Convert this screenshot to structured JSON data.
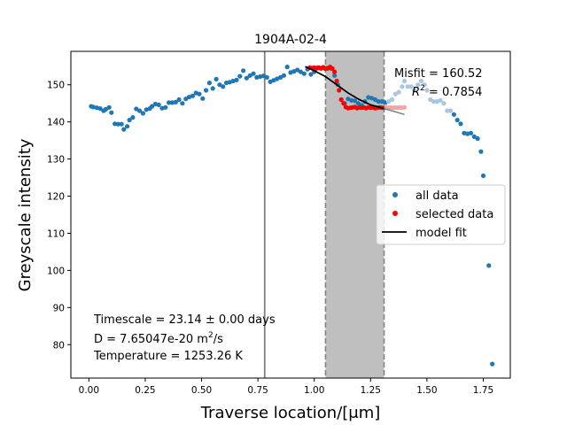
{
  "chart_data": {
    "type": "scatter",
    "title": "1904A-02-4",
    "xlabel": "Traverse location/[μm]",
    "ylabel": "Greyscale intensity",
    "xlim": [
      -0.08,
      1.87
    ],
    "ylim": [
      71,
      159
    ],
    "x_ticks": [
      0.0,
      0.25,
      0.5,
      0.75,
      1.0,
      1.25,
      1.5,
      1.75
    ],
    "x_tick_labels": [
      "0.00",
      "0.25",
      "0.50",
      "0.75",
      "1.00",
      "1.25",
      "1.50",
      "1.75"
    ],
    "y_ticks": [
      80,
      90,
      100,
      110,
      120,
      130,
      140,
      150
    ],
    "y_tick_labels": [
      "80",
      "90",
      "100",
      "110",
      "120",
      "130",
      "140",
      "150"
    ],
    "grid": false,
    "legend_placement": "center-right",
    "legend": [
      {
        "label": "all data",
        "marker": "dot",
        "color": "#1f77b4"
      },
      {
        "label": "selected data",
        "marker": "dot",
        "color": "#ff0000"
      },
      {
        "label": "model fit",
        "marker": "line",
        "color": "#000000"
      }
    ],
    "misfit_text": "Misfit = 160.52",
    "r2_prefix": "R",
    "r2_sup": "2",
    "r2_value": " = 0.7854",
    "annotation_timescale": "Timescale = 23.14 ± 0.00 days",
    "annotation_d_prefix": "D = 7.65047e-20 m",
    "annotation_d_sup": "2",
    "annotation_d_suffix": "/s",
    "annotation_temperature": "Temperature = 1253.26 K",
    "interface_line_x": 0.78,
    "shaded_region": [
      1.05,
      1.31
    ],
    "colors": {
      "all_data": "#1f77b4",
      "all_data_faded": "#a9c6e0",
      "selected": "#ff0000",
      "selected_faded": "#f4a3a3",
      "model_fit": "#000000",
      "model_fit_ext": "#808080",
      "shade": "#bfbfbf",
      "interface": "#808080"
    },
    "series": [
      {
        "name": "all data",
        "points": [
          [
            0.01,
            144.2
          ],
          [
            0.02,
            144.0
          ],
          [
            0.035,
            143.8
          ],
          [
            0.05,
            143.6
          ],
          [
            0.065,
            143.0
          ],
          [
            0.075,
            143.4
          ],
          [
            0.09,
            143.9
          ],
          [
            0.1,
            142.5
          ],
          [
            0.115,
            139.5
          ],
          [
            0.13,
            139.4
          ],
          [
            0.145,
            139.4
          ],
          [
            0.155,
            138.0
          ],
          [
            0.17,
            138.8
          ],
          [
            0.18,
            140.5
          ],
          [
            0.195,
            141.2
          ],
          [
            0.21,
            143.5
          ],
          [
            0.225,
            143.0
          ],
          [
            0.24,
            142.3
          ],
          [
            0.255,
            143.3
          ],
          [
            0.27,
            143.6
          ],
          [
            0.28,
            144.2
          ],
          [
            0.295,
            144.8
          ],
          [
            0.31,
            144.6
          ],
          [
            0.325,
            143.7
          ],
          [
            0.34,
            143.9
          ],
          [
            0.355,
            145.2
          ],
          [
            0.37,
            145.2
          ],
          [
            0.385,
            145.3
          ],
          [
            0.4,
            146.0
          ],
          [
            0.415,
            145.0
          ],
          [
            0.43,
            146.2
          ],
          [
            0.445,
            146.7
          ],
          [
            0.46,
            147.0
          ],
          [
            0.475,
            147.8
          ],
          [
            0.49,
            147.5
          ],
          [
            0.505,
            146.3
          ],
          [
            0.52,
            148.5
          ],
          [
            0.535,
            150.5
          ],
          [
            0.55,
            149.0
          ],
          [
            0.565,
            151.5
          ],
          [
            0.58,
            150.0
          ],
          [
            0.595,
            149.5
          ],
          [
            0.61,
            150.5
          ],
          [
            0.625,
            150.7
          ],
          [
            0.64,
            151.0
          ],
          [
            0.655,
            151.3
          ],
          [
            0.67,
            152.3
          ],
          [
            0.685,
            153.8
          ],
          [
            0.7,
            151.8
          ],
          [
            0.715,
            152.5
          ],
          [
            0.73,
            153.0
          ],
          [
            0.745,
            152.0
          ],
          [
            0.76,
            152.2
          ],
          [
            0.775,
            152.4
          ],
          [
            0.79,
            152.0
          ],
          [
            0.805,
            150.8
          ],
          [
            0.82,
            151.2
          ],
          [
            0.835,
            151.6
          ],
          [
            0.85,
            152.0
          ],
          [
            0.865,
            152.5
          ],
          [
            0.88,
            154.8
          ],
          [
            0.895,
            153.3
          ],
          [
            0.91,
            153.6
          ],
          [
            0.925,
            154.0
          ],
          [
            0.94,
            153.5
          ],
          [
            0.955,
            153.0
          ],
          [
            0.97,
            154.2
          ],
          [
            0.985,
            152.8
          ],
          [
            1.0,
            153.5
          ],
          [
            1.015,
            154.6
          ],
          [
            1.03,
            154.5
          ],
          [
            1.045,
            154.5
          ],
          [
            1.06,
            154.5
          ],
          [
            1.075,
            154.4
          ],
          [
            1.09,
            152.5
          ],
          [
            1.105,
            150.0
          ],
          [
            1.12,
            146.0
          ],
          [
            1.135,
            145.0
          ],
          [
            1.15,
            146.2
          ],
          [
            1.165,
            145.8
          ],
          [
            1.18,
            145.7
          ],
          [
            1.195,
            145.0
          ],
          [
            1.21,
            144.5
          ],
          [
            1.225,
            145.5
          ],
          [
            1.24,
            146.6
          ],
          [
            1.255,
            146.4
          ],
          [
            1.27,
            146.0
          ],
          [
            1.285,
            145.5
          ],
          [
            1.3,
            145.5
          ],
          [
            1.315,
            145.2
          ]
        ]
      },
      {
        "name": "all data (outside window)",
        "points": [
          [
            1.33,
            145.5
          ],
          [
            1.345,
            146.0
          ],
          [
            1.36,
            147.5
          ],
          [
            1.375,
            148.0
          ],
          [
            1.39,
            149.5
          ],
          [
            1.4,
            151.0
          ],
          [
            1.415,
            149.5
          ],
          [
            1.43,
            149.5
          ],
          [
            1.445,
            148.5
          ],
          [
            1.46,
            150.0
          ],
          [
            1.475,
            151.0
          ],
          [
            1.49,
            150.0
          ],
          [
            1.5,
            148.5
          ],
          [
            1.515,
            146.0
          ],
          [
            1.53,
            145.5
          ],
          [
            1.545,
            145.5
          ],
          [
            1.56,
            145.8
          ],
          [
            1.575,
            145.0
          ],
          [
            1.59,
            143.0
          ],
          [
            1.605,
            143.0
          ]
        ]
      },
      {
        "name": "all data (tail)",
        "points": [
          [
            1.62,
            142.0
          ],
          [
            1.635,
            140.5
          ],
          [
            1.65,
            139.5
          ],
          [
            1.665,
            137.0
          ],
          [
            1.68,
            136.8
          ],
          [
            1.695,
            137.0
          ],
          [
            1.71,
            136.0
          ],
          [
            1.725,
            135.5
          ],
          [
            1.74,
            132.0
          ],
          [
            1.75,
            125.5
          ],
          [
            1.775,
            101.3
          ],
          [
            1.79,
            74.8
          ]
        ]
      },
      {
        "name": "selected data",
        "points": [
          [
            0.98,
            154.6
          ],
          [
            0.99,
            154.5
          ],
          [
            1.0,
            154.6
          ],
          [
            1.01,
            154.4
          ],
          [
            1.02,
            154.6
          ],
          [
            1.03,
            154.4
          ],
          [
            1.04,
            154.7
          ],
          [
            1.05,
            154.3
          ],
          [
            1.06,
            154.4
          ],
          [
            1.07,
            154.8
          ],
          [
            1.08,
            154.4
          ],
          [
            1.09,
            153.5
          ],
          [
            1.1,
            151.0
          ],
          [
            1.11,
            148.5
          ],
          [
            1.12,
            146.0
          ],
          [
            1.13,
            145.0
          ],
          [
            1.14,
            144.0
          ],
          [
            1.15,
            143.7
          ],
          [
            1.16,
            143.8
          ],
          [
            1.17,
            143.9
          ],
          [
            1.18,
            144.0
          ],
          [
            1.19,
            143.7
          ],
          [
            1.2,
            143.9
          ],
          [
            1.21,
            143.8
          ],
          [
            1.22,
            143.9
          ],
          [
            1.23,
            143.7
          ],
          [
            1.24,
            143.9
          ],
          [
            1.25,
            143.8
          ],
          [
            1.26,
            143.9
          ],
          [
            1.27,
            143.7
          ],
          [
            1.28,
            143.8
          ],
          [
            1.29,
            143.9
          ],
          [
            1.3,
            143.8
          ],
          [
            1.31,
            143.8
          ]
        ]
      },
      {
        "name": "selected data (outside window)",
        "points": [
          [
            1.32,
            143.9
          ],
          [
            1.33,
            143.8
          ],
          [
            1.34,
            143.9
          ],
          [
            1.35,
            143.8
          ],
          [
            1.36,
            143.9
          ],
          [
            1.37,
            143.8
          ],
          [
            1.38,
            143.9
          ],
          [
            1.39,
            143.8
          ],
          [
            1.4,
            143.9
          ]
        ]
      },
      {
        "name": "model fit",
        "points": [
          [
            0.96,
            154.9
          ],
          [
            1.0,
            153.8
          ],
          [
            1.05,
            152.2
          ],
          [
            1.1,
            150.0
          ],
          [
            1.15,
            147.8
          ],
          [
            1.2,
            146.0
          ],
          [
            1.25,
            144.6
          ],
          [
            1.31,
            143.6
          ]
        ]
      },
      {
        "name": "model fit (extension)",
        "points": [
          [
            1.31,
            143.6
          ],
          [
            1.35,
            142.9
          ],
          [
            1.4,
            142.0
          ]
        ]
      }
    ]
  }
}
